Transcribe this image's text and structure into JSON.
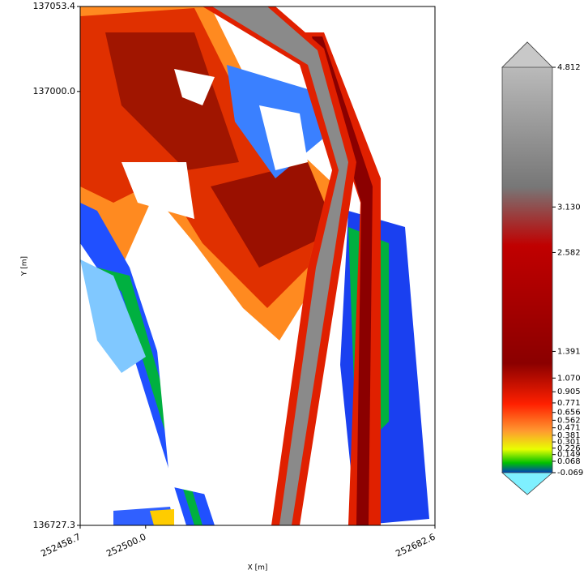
{
  "map": {
    "x_label": "X [m]",
    "y_label": "Y [m]",
    "xlim": [
      252458.7,
      252682.6
    ],
    "xticks": [
      252458.7,
      {
        "value": 252500,
        "label": "252500.0"
      },
      252682.6
    ],
    "ylim": [
      136727.3,
      137053.4
    ],
    "yticks": [
      136727.3,
      {
        "value": 137000,
        "label": "137000.0"
      },
      137053.4
    ]
  },
  "colorbar": {
    "lim": [
      -0.069,
      4.812
    ],
    "ticks": [
      4.812,
      {
        "value": 3.13,
        "label": "3.130"
      },
      2.582,
      1.391,
      {
        "value": 1.07,
        "label": "1.070"
      },
      0.905,
      0.771,
      0.656,
      0.562,
      0.471,
      0.381,
      0.301,
      0.226,
      0.149,
      0.068,
      -0.069
    ]
  }
}
